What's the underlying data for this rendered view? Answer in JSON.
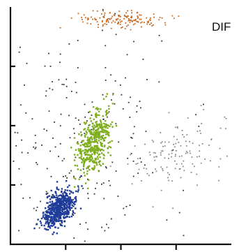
{
  "chart_data": {
    "type": "scatter",
    "title": "DIF",
    "title_position": "top-right",
    "xlabel": "",
    "ylabel": "",
    "xlim": [
      0,
      100
    ],
    "ylim": [
      0,
      100
    ],
    "grid": false,
    "x_ticks": [
      25,
      50,
      75
    ],
    "y_ticks": [
      25,
      50,
      75
    ],
    "x_tick_labels": [],
    "y_tick_labels": [],
    "clusters": [
      {
        "color": "#1f3c99",
        "count": 520,
        "center": [
          22,
          15
        ],
        "spread": [
          3.4,
          3.6
        ],
        "tilt": 0.55
      },
      {
        "color": "#7fae1e",
        "count": 430,
        "center": [
          38,
          43
        ],
        "spread": [
          3.8,
          6.0
        ],
        "tilt": 0.85
      },
      {
        "color": "#c8651b",
        "count": 150,
        "center": [
          49,
          95
        ],
        "spread": [
          11,
          1.8
        ],
        "tilt": 0
      },
      {
        "color": "#8a8a8a",
        "count": 130,
        "center": [
          76,
          37
        ],
        "spread": [
          10,
          7
        ],
        "tilt": 0.1
      },
      {
        "color": "#333333",
        "count": 240,
        "center": [
          34,
          44
        ],
        "spread": [
          18,
          25
        ],
        "tilt": 0.4
      }
    ]
  }
}
